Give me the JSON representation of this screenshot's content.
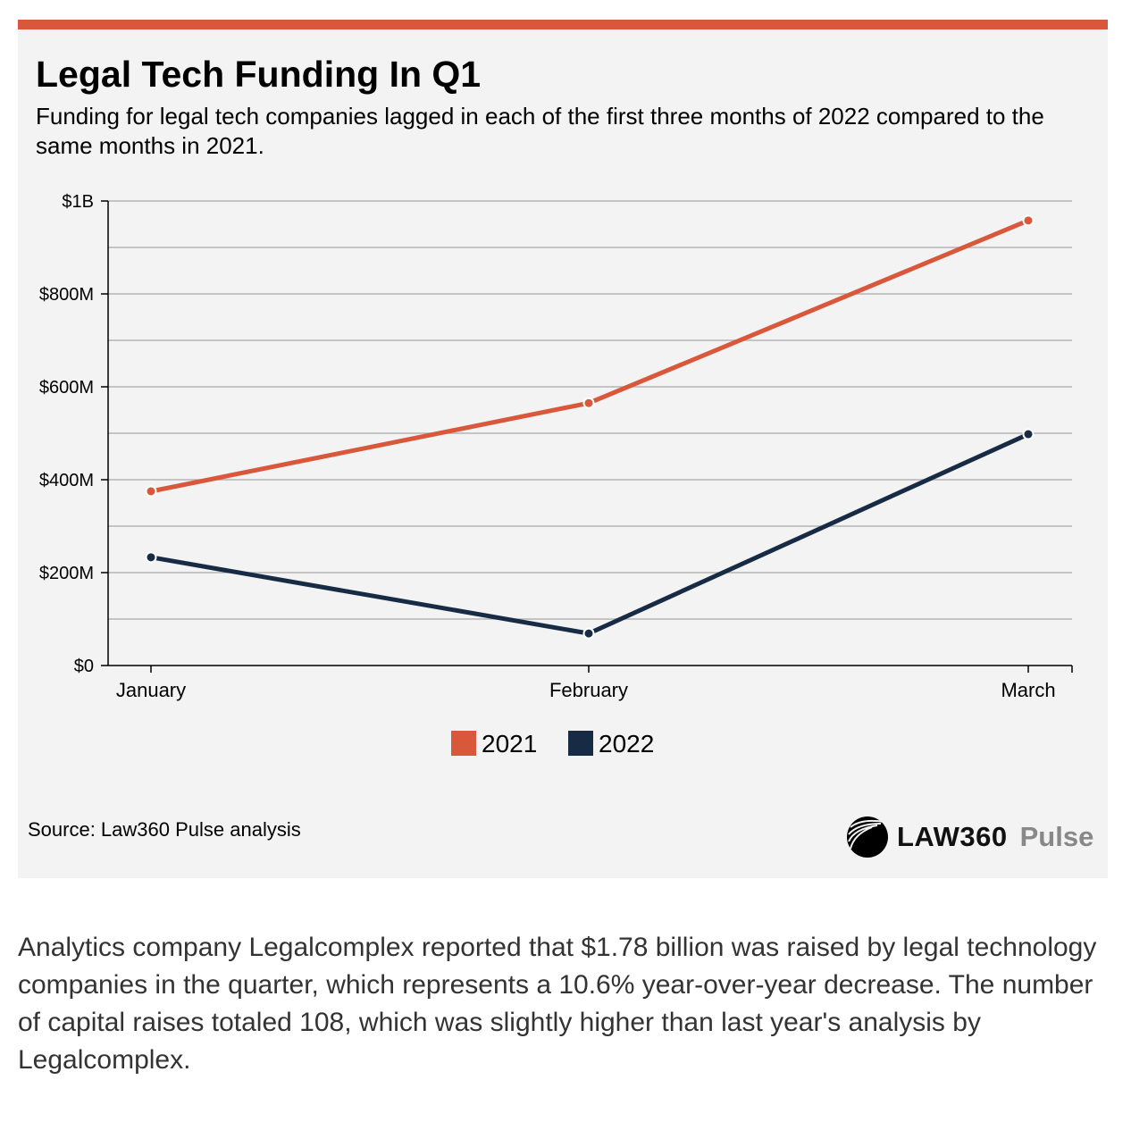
{
  "chart_data": {
    "type": "line",
    "title": "Legal Tech Funding In Q1",
    "subtitle": "Funding for legal tech companies lagged in each of the first three months of 2022 compared to the same months in 2021.",
    "categories": [
      "January",
      "February",
      "March"
    ],
    "series": [
      {
        "name": "2021",
        "color": "#d9573b",
        "values": [
          375,
          565,
          958
        ]
      },
      {
        "name": "2022",
        "color": "#172b45",
        "values": [
          233,
          69,
          498
        ]
      }
    ],
    "unit": "millions USD",
    "ylim": [
      0,
      1000
    ],
    "yticks": [
      {
        "v": 0,
        "label": "$0"
      },
      {
        "v": 200,
        "label": "$200M"
      },
      {
        "v": 400,
        "label": "$400M"
      },
      {
        "v": 600,
        "label": "$600M"
      },
      {
        "v": 800,
        "label": "$800M"
      },
      {
        "v": 1000,
        "label": "$1B"
      }
    ],
    "grid": true,
    "legend": "bottom-center"
  },
  "source": "Source: Law360 Pulse analysis",
  "logo": {
    "brand": "LAW360",
    "suffix": "Pulse"
  },
  "body": "Analytics company Legalcomplex reported that $1.78 billion was raised by legal technology companies in the quarter, which represents a 10.6% year-over-year decrease. The number of capital raises totaled 108, which was slightly higher than last year's analysis by Legalcomplex."
}
